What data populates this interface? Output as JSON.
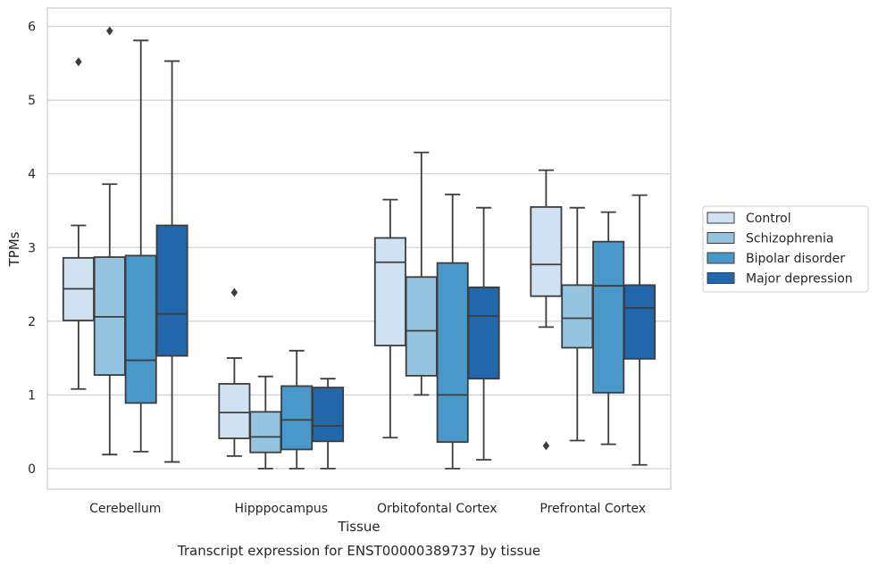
{
  "chart_data": {
    "type": "box",
    "caption": "Transcript expression for ENST00000389737 by tissue",
    "xlabel": "Tissue",
    "ylabel": "TPMs",
    "ylim": [
      -0.28,
      6.25
    ],
    "yticks": [
      0,
      1,
      2,
      3,
      4,
      5,
      6
    ],
    "grid": "horizontal",
    "legend_position": "right",
    "categories": [
      "Cerebellum",
      "Hipppocampus",
      "Orbitofontal Cortex",
      "Prefrontal Cortex"
    ],
    "series": [
      {
        "name": "Control",
        "color": "#d0e1f2",
        "boxes": [
          {
            "whisker_low": 1.08,
            "q1": 2.01,
            "median": 2.44,
            "q3": 2.86,
            "whisker_high": 3.3,
            "outliers": [
              5.52
            ]
          },
          {
            "whisker_low": 0.17,
            "q1": 0.41,
            "median": 0.76,
            "q3": 1.15,
            "whisker_high": 1.5,
            "outliers": [
              2.39
            ]
          },
          {
            "whisker_low": 0.42,
            "q1": 1.67,
            "median": 2.8,
            "q3": 3.13,
            "whisker_high": 3.65,
            "outliers": []
          },
          {
            "whisker_low": 1.92,
            "q1": 2.34,
            "median": 2.77,
            "q3": 3.55,
            "whisker_high": 4.05,
            "outliers": [
              0.31
            ]
          }
        ]
      },
      {
        "name": "Schizophrenia",
        "color": "#94c4df",
        "boxes": [
          {
            "whisker_low": 0.19,
            "q1": 1.27,
            "median": 2.06,
            "q3": 2.87,
            "whisker_high": 3.86,
            "outliers": [
              5.94
            ]
          },
          {
            "whisker_low": 0.0,
            "q1": 0.22,
            "median": 0.43,
            "q3": 0.77,
            "whisker_high": 1.25,
            "outliers": []
          },
          {
            "whisker_low": 1.0,
            "q1": 1.26,
            "median": 1.87,
            "q3": 2.6,
            "whisker_high": 4.29,
            "outliers": []
          },
          {
            "whisker_low": 0.38,
            "q1": 1.64,
            "median": 2.04,
            "q3": 2.49,
            "whisker_high": 3.54,
            "outliers": []
          }
        ]
      },
      {
        "name": "Bipolar disorder",
        "color": "#4a98c9",
        "boxes": [
          {
            "whisker_low": 0.23,
            "q1": 0.89,
            "median": 1.47,
            "q3": 2.89,
            "whisker_high": 5.81,
            "outliers": []
          },
          {
            "whisker_low": 0.0,
            "q1": 0.26,
            "median": 0.66,
            "q3": 1.12,
            "whisker_high": 1.6,
            "outliers": []
          },
          {
            "whisker_low": 0.0,
            "q1": 0.36,
            "median": 1.0,
            "q3": 2.79,
            "whisker_high": 3.72,
            "outliers": []
          },
          {
            "whisker_low": 0.33,
            "q1": 1.03,
            "median": 2.48,
            "q3": 3.08,
            "whisker_high": 3.48,
            "outliers": []
          }
        ]
      },
      {
        "name": "Major depression",
        "color": "#2266ac",
        "boxes": [
          {
            "whisker_low": 0.09,
            "q1": 1.53,
            "median": 2.1,
            "q3": 3.3,
            "whisker_high": 5.53,
            "outliers": []
          },
          {
            "whisker_low": 0.0,
            "q1": 0.37,
            "median": 0.58,
            "q3": 1.1,
            "whisker_high": 1.22,
            "outliers": []
          },
          {
            "whisker_low": 0.12,
            "q1": 1.22,
            "median": 2.07,
            "q3": 2.46,
            "whisker_high": 3.54,
            "outliers": []
          },
          {
            "whisker_low": 0.05,
            "q1": 1.49,
            "median": 2.18,
            "q3": 2.49,
            "whisker_high": 3.71,
            "outliers": []
          }
        ]
      }
    ]
  }
}
